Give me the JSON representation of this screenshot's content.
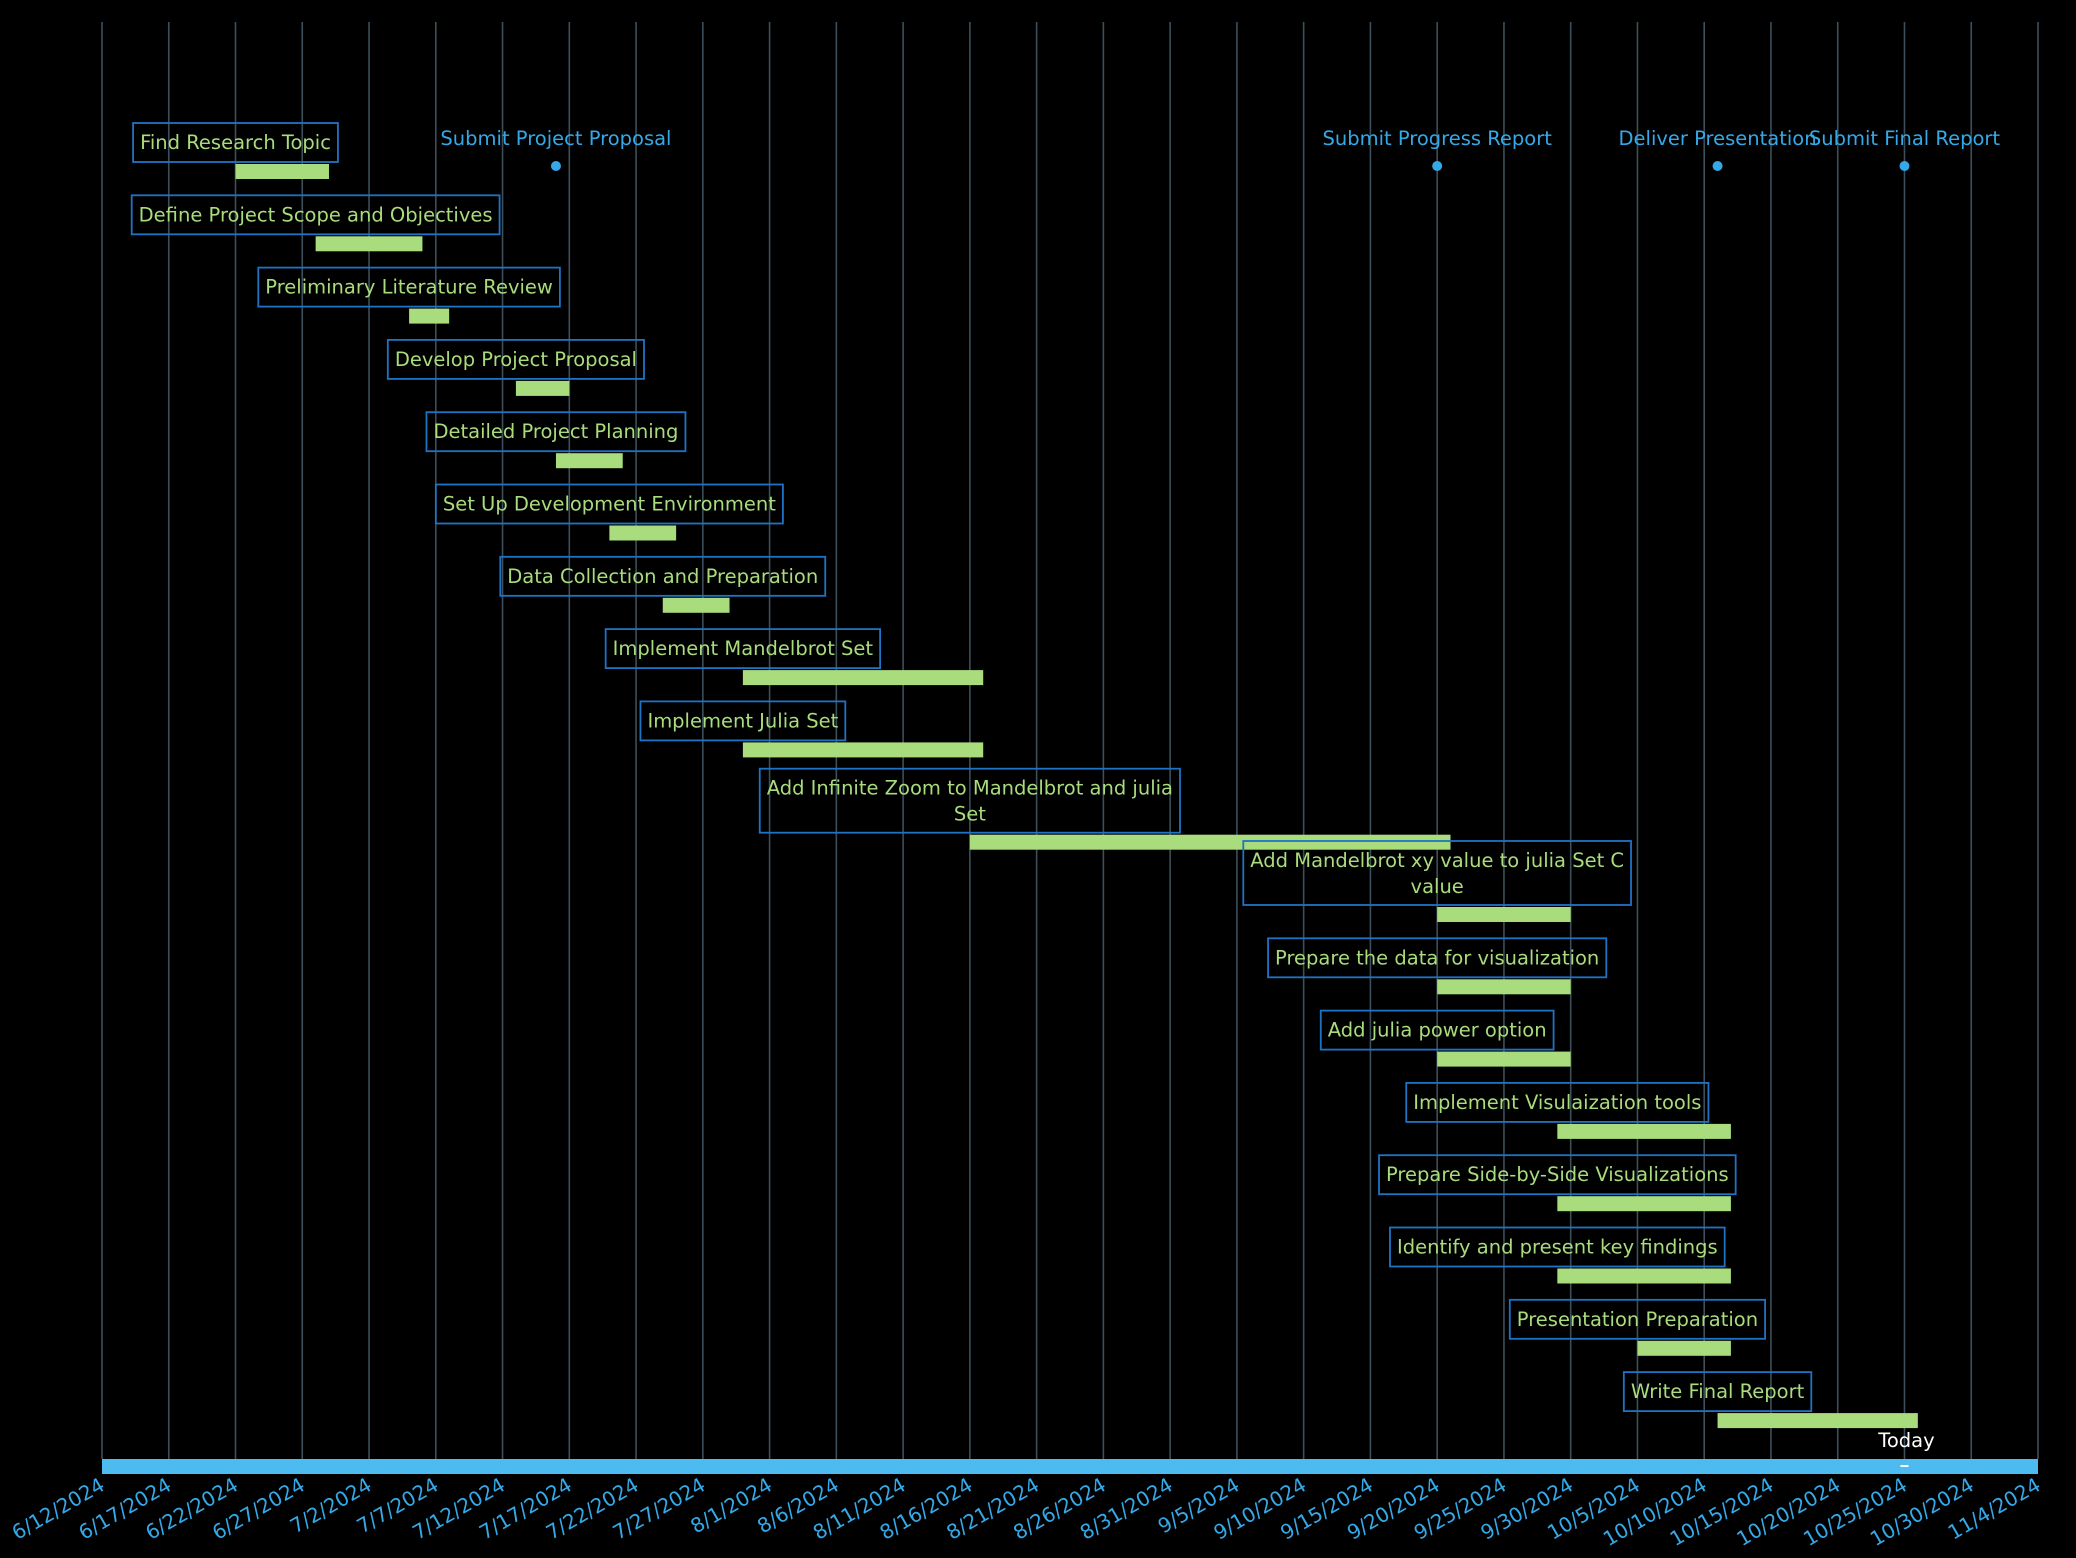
{
  "chart_data": {
    "type": "gantt",
    "title": "",
    "xlabel": "",
    "ylabel": "",
    "x_range": [
      "2024-06-12",
      "2024-11-04"
    ],
    "x_ticks": [
      "6/12/2024",
      "6/17/2024",
      "6/22/2024",
      "6/27/2024",
      "7/2/2024",
      "7/7/2024",
      "7/12/2024",
      "7/17/2024",
      "7/22/2024",
      "7/27/2024",
      "8/1/2024",
      "8/6/2024",
      "8/11/2024",
      "8/16/2024",
      "8/21/2024",
      "8/26/2024",
      "8/31/2024",
      "9/5/2024",
      "9/10/2024",
      "9/15/2024",
      "9/20/2024",
      "9/25/2024",
      "9/30/2024",
      "10/5/2024",
      "10/10/2024",
      "10/15/2024",
      "10/20/2024",
      "10/25/2024",
      "10/30/2024",
      "11/4/2024"
    ],
    "grid": true,
    "tasks": [
      {
        "name": "Find Research Topic",
        "start": "2024-06-22",
        "end": "2024-06-29"
      },
      {
        "name": "Define Project Scope and Objectives",
        "start": "2024-06-28",
        "end": "2024-07-06"
      },
      {
        "name": "Preliminary Literature Review",
        "start": "2024-07-05",
        "end": "2024-07-08"
      },
      {
        "name": "Develop Project Proposal",
        "start": "2024-07-13",
        "end": "2024-07-17"
      },
      {
        "name": "Detailed Project Planning",
        "start": "2024-07-16",
        "end": "2024-07-21"
      },
      {
        "name": "Set Up Development Environment",
        "start": "2024-07-20",
        "end": "2024-07-25"
      },
      {
        "name": "Data Collection and Preparation",
        "start": "2024-07-24",
        "end": "2024-07-29"
      },
      {
        "name": "Implement Mandelbrot Set",
        "start": "2024-07-30",
        "end": "2024-08-17"
      },
      {
        "name": "Implement Julia Set",
        "start": "2024-07-30",
        "end": "2024-08-17"
      },
      {
        "name": "Add Infinite Zoom to Mandelbrot and julia Set",
        "start": "2024-08-16",
        "end": "2024-09-21"
      },
      {
        "name": "Add Mandelbrot xy value to julia Set C value",
        "start": "2024-09-20",
        "end": "2024-09-30"
      },
      {
        "name": "Prepare the data for visualization",
        "start": "2024-09-20",
        "end": "2024-09-30"
      },
      {
        "name": "Add julia power option",
        "start": "2024-09-20",
        "end": "2024-09-30"
      },
      {
        "name": "Implement Visulaization tools",
        "start": "2024-09-29",
        "end": "2024-10-12"
      },
      {
        "name": "Prepare Side-by-Side Visualizations",
        "start": "2024-09-29",
        "end": "2024-10-12"
      },
      {
        "name": "Identify and present key findings",
        "start": "2024-09-29",
        "end": "2024-10-12"
      },
      {
        "name": "Presentation Preparation",
        "start": "2024-10-05",
        "end": "2024-10-12"
      },
      {
        "name": "Write Final Report",
        "start": "2024-10-11",
        "end": "2024-10-26"
      }
    ],
    "milestones": [
      {
        "name": "Submit Project Proposal",
        "date": "2024-07-16"
      },
      {
        "name": "Submit Progress Report",
        "date": "2024-09-20"
      },
      {
        "name": "Deliver Presentation",
        "date": "2024-10-11"
      },
      {
        "name": "Submit Final Report",
        "date": "2024-10-25"
      }
    ],
    "today": {
      "label": "Today",
      "date": "2024-10-25"
    },
    "colors": {
      "background": "#000000",
      "task_bar": "#a8dc7c",
      "task_label_text": "#a8dc7c",
      "label_border": "#1f73c6",
      "milestone": "#35a9e8",
      "axis_bar": "#4dbbf0",
      "grid": "#3c4f5a",
      "tick_text": "#35a9e8",
      "today_text": "#ffffff"
    }
  }
}
